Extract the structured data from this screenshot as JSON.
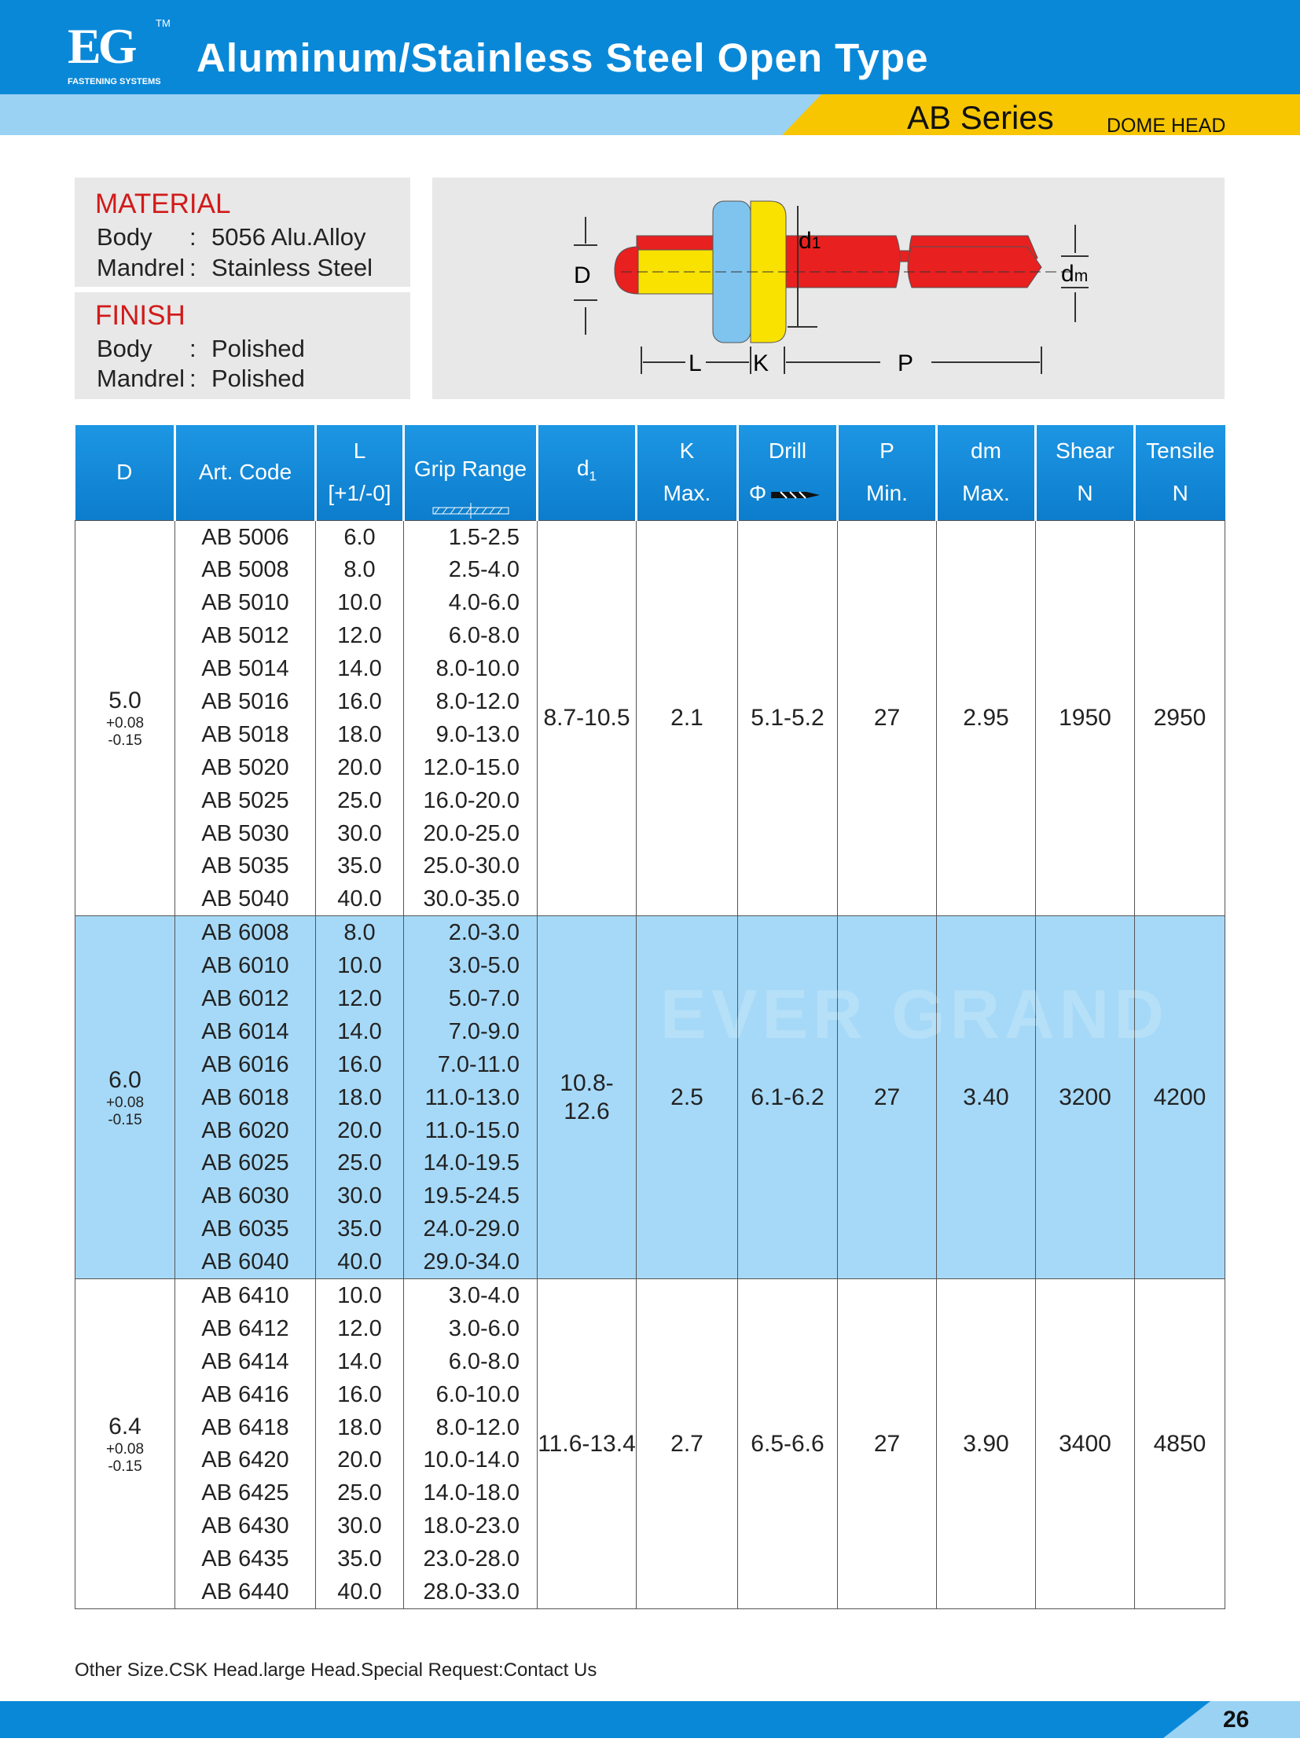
{
  "header": {
    "logo": "EG",
    "trademark": "TM",
    "logo_tagline": "FASTENING SYSTEMS",
    "title": "Aluminum/Stainless Steel Open Type",
    "series": "AB Series",
    "head_type": "DOME HEAD"
  },
  "material": {
    "heading": "MATERIAL",
    "rows": [
      {
        "label": "Body",
        "sep": ":",
        "value": "5056 Alu.Alloy"
      },
      {
        "label": "Mandrel",
        "sep": ":",
        "value": "Stainless Steel"
      }
    ]
  },
  "finish": {
    "heading": "FINISH",
    "rows": [
      {
        "label": "Body",
        "sep": ":",
        "value": "Polished"
      },
      {
        "label": "Mandrel",
        "sep": ":",
        "value": "Polished"
      }
    ]
  },
  "diagram": {
    "D": "D",
    "d1": {
      "text": "d",
      "sub": "1"
    },
    "dm": {
      "text": "d",
      "sub": "m"
    },
    "L": "L",
    "K": "K",
    "P": "P"
  },
  "table": {
    "columns": [
      {
        "lines": [
          "D"
        ]
      },
      {
        "lines": [
          "Art. Code"
        ]
      },
      {
        "lines": [
          "L",
          "[+1/-0]"
        ]
      },
      {
        "lines": [
          "Grip Range"
        ]
      },
      {
        "text": "d",
        "sub": "1"
      },
      {
        "lines": [
          "K",
          "Max."
        ]
      },
      {
        "lines": [
          "Drill",
          "Φ"
        ]
      },
      {
        "lines": [
          "P",
          "Min."
        ]
      },
      {
        "lines": [
          "dm",
          "Max."
        ]
      },
      {
        "lines": [
          "Shear",
          "N"
        ]
      },
      {
        "lines": [
          "Tensile",
          "N"
        ]
      }
    ],
    "groups": [
      {
        "D": "5.0",
        "tol_plus": "+0.08",
        "tol_minus": "-0.15",
        "d1": "8.7-10.5",
        "K": "2.1",
        "drill": "5.1-5.2",
        "P": "27",
        "dm": "2.95",
        "shear": "1950",
        "tensile": "2950",
        "rows": [
          [
            "AB 5006",
            "6.0",
            "1.5-2.5"
          ],
          [
            "AB 5008",
            "8.0",
            "2.5-4.0"
          ],
          [
            "AB 5010",
            "10.0",
            "4.0-6.0"
          ],
          [
            "AB 5012",
            "12.0",
            "6.0-8.0"
          ],
          [
            "AB 5014",
            "14.0",
            "8.0-10.0"
          ],
          [
            "AB 5016",
            "16.0",
            "8.0-12.0"
          ],
          [
            "AB 5018",
            "18.0",
            "9.0-13.0"
          ],
          [
            "AB 5020",
            "20.0",
            "12.0-15.0"
          ],
          [
            "AB 5025",
            "25.0",
            "16.0-20.0"
          ],
          [
            "AB 5030",
            "30.0",
            "20.0-25.0"
          ],
          [
            "AB 5035",
            "35.0",
            "25.0-30.0"
          ],
          [
            "AB 5040",
            "40.0",
            "30.0-35.0"
          ]
        ]
      },
      {
        "D": "6.0",
        "tol_plus": "+0.08",
        "tol_minus": "-0.15",
        "d1": "10.8-12.6",
        "K": "2.5",
        "drill": "6.1-6.2",
        "P": "27",
        "dm": "3.40",
        "shear": "3200",
        "tensile": "4200",
        "rows": [
          [
            "AB 6008",
            "8.0",
            "2.0-3.0"
          ],
          [
            "AB 6010",
            "10.0",
            "3.0-5.0"
          ],
          [
            "AB 6012",
            "12.0",
            "5.0-7.0"
          ],
          [
            "AB 6014",
            "14.0",
            "7.0-9.0"
          ],
          [
            "AB 6016",
            "16.0",
            "7.0-11.0"
          ],
          [
            "AB 6018",
            "18.0",
            "11.0-13.0"
          ],
          [
            "AB 6020",
            "20.0",
            "11.0-15.0"
          ],
          [
            "AB 6025",
            "25.0",
            "14.0-19.5"
          ],
          [
            "AB 6030",
            "30.0",
            "19.5-24.5"
          ],
          [
            "AB 6035",
            "35.0",
            "24.0-29.0"
          ],
          [
            "AB 6040",
            "40.0",
            "29.0-34.0"
          ]
        ]
      },
      {
        "D": "6.4",
        "tol_plus": "+0.08",
        "tol_minus": "-0.15",
        "d1": "11.6-13.4",
        "K": "2.7",
        "drill": "6.5-6.6",
        "P": "27",
        "dm": "3.90",
        "shear": "3400",
        "tensile": "4850",
        "rows": [
          [
            "AB 6410",
            "10.0",
            "3.0-4.0"
          ],
          [
            "AB 6412",
            "12.0",
            "3.0-6.0"
          ],
          [
            "AB 6414",
            "14.0",
            "6.0-8.0"
          ],
          [
            "AB 6416",
            "16.0",
            "6.0-10.0"
          ],
          [
            "AB 6418",
            "18.0",
            "8.0-12.0"
          ],
          [
            "AB 6420",
            "20.0",
            "10.0-14.0"
          ],
          [
            "AB 6425",
            "25.0",
            "14.0-18.0"
          ],
          [
            "AB 6430",
            "30.0",
            "18.0-23.0"
          ],
          [
            "AB 6435",
            "35.0",
            "23.0-28.0"
          ],
          [
            "AB 6440",
            "40.0",
            "28.0-33.0"
          ]
        ]
      }
    ]
  },
  "watermark": "EVER GRAND",
  "footer": {
    "note": "Other Size.CSK Head.large Head.Special Request:Contact Us",
    "page": "26"
  }
}
